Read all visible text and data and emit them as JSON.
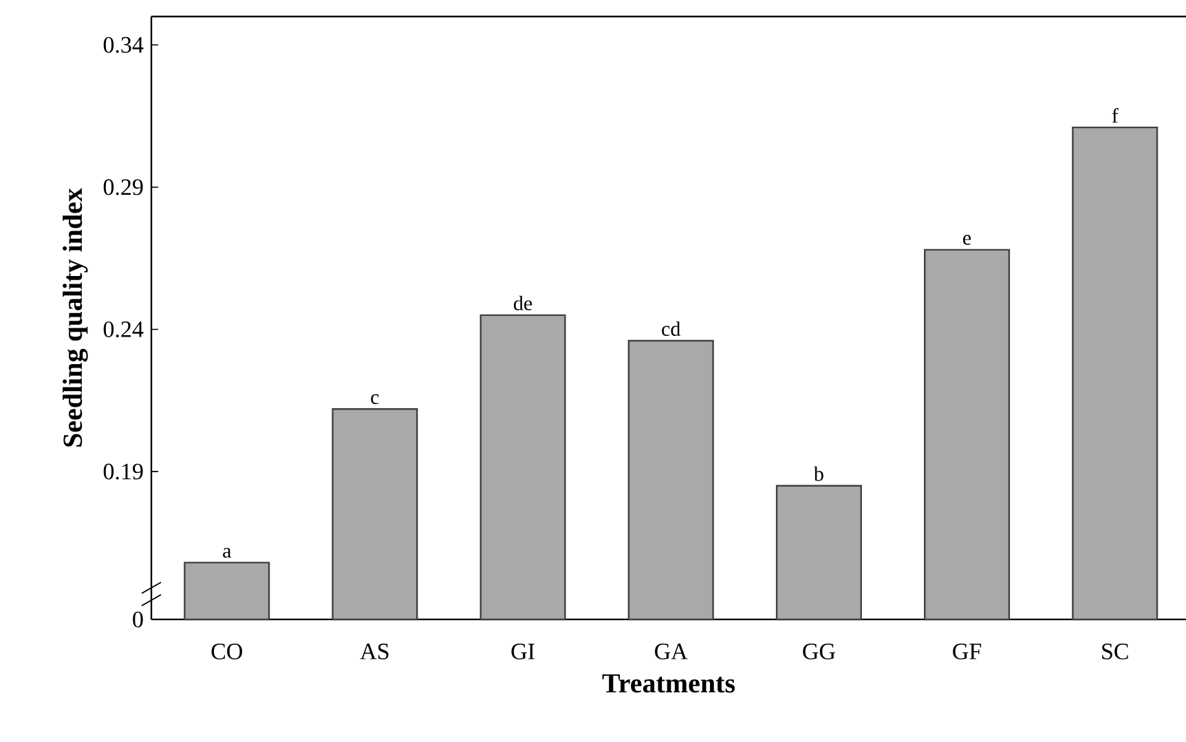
{
  "chart_data": {
    "type": "bar",
    "xlabel": "Treatments",
    "ylabel": "Seedling quality index",
    "categories": [
      "CO",
      "AS",
      "GI",
      "GA",
      "GG",
      "GF",
      "SC"
    ],
    "values": [
      0.158,
      0.212,
      0.245,
      0.236,
      0.185,
      0.268,
      0.311
    ],
    "color": "#a9a9a9",
    "ylim": [
      0.138,
      0.35
    ],
    "yticks": [
      {
        "value": 0.138,
        "label": "0"
      },
      0.19,
      0.24,
      0.29,
      0.34
    ],
    "annotations": [
      {
        "text": "a",
        "x": "CO",
        "y": 0.158
      },
      {
        "text": "c",
        "x": "AS",
        "y": 0.212
      },
      {
        "text": "de",
        "x": "GI",
        "y": 0.245
      },
      {
        "text": "cd",
        "x": "GA",
        "y": 0.236
      },
      {
        "text": "b",
        "x": "GG",
        "y": 0.185
      },
      {
        "text": "e",
        "x": "GF",
        "y": 0.268
      },
      {
        "text": "f",
        "x": "SC",
        "y": 0.311
      }
    ]
  }
}
